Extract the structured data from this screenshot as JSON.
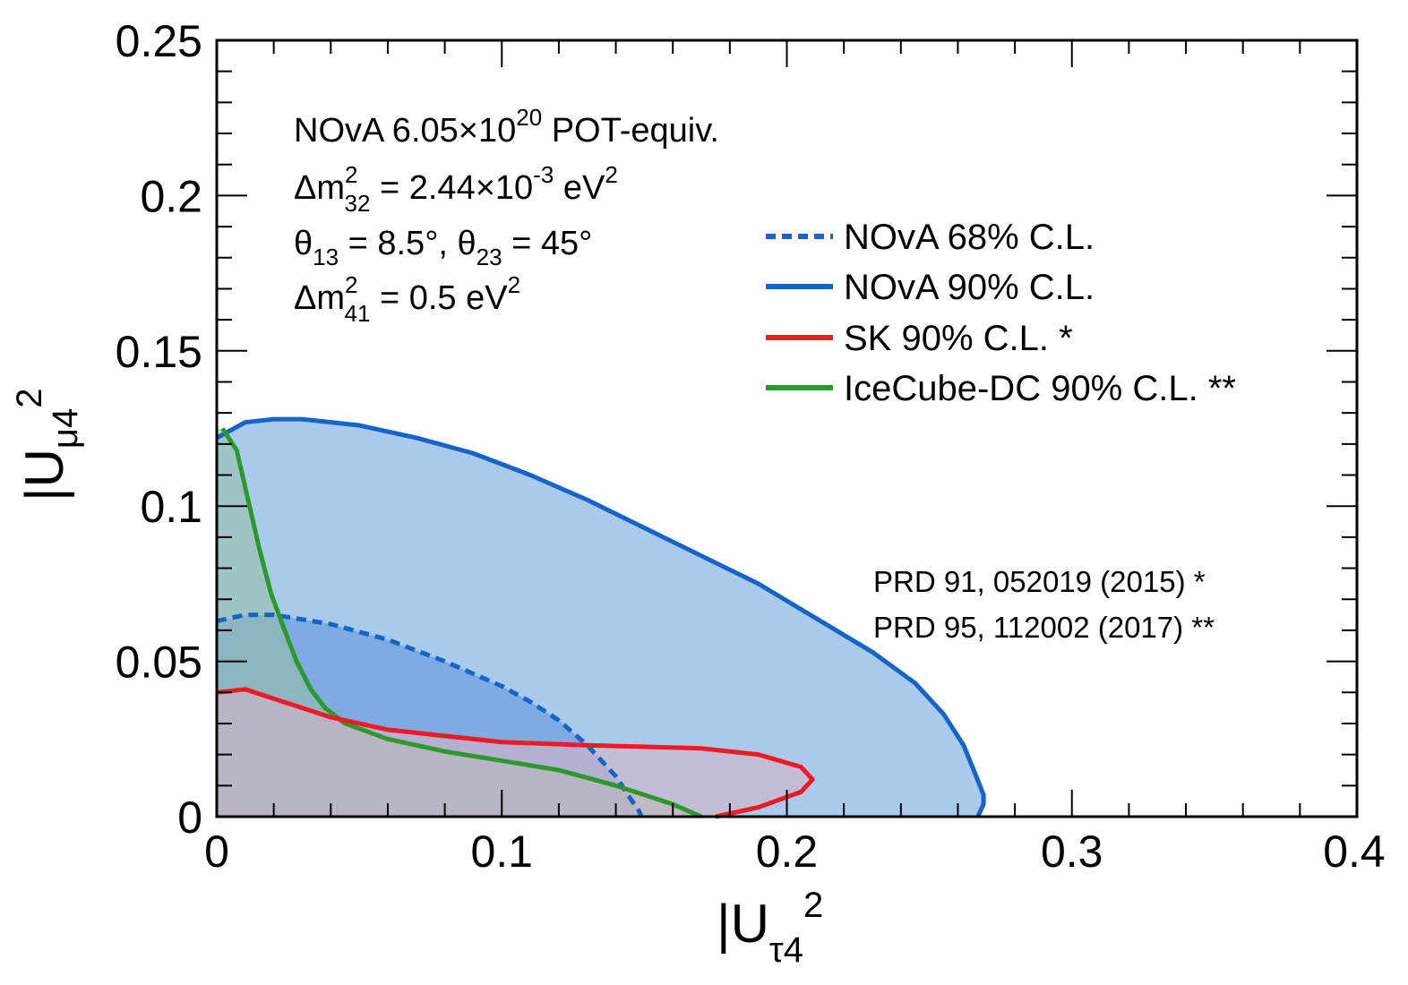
{
  "chart_data": {
    "type": "area",
    "xlabel": {
      "main": "|U",
      "sub": "τ4",
      "sup": "2"
    },
    "ylabel": {
      "main": "|U",
      "sub": "μ4",
      "sup": "2"
    },
    "xlim": [
      0,
      0.4
    ],
    "ylim": [
      0,
      0.25
    ],
    "xticks": [
      "0",
      "0.1",
      "0.2",
      "0.3",
      "0.4"
    ],
    "yticks": [
      "0",
      "0.05",
      "0.1",
      "0.15",
      "0.2",
      "0.25"
    ],
    "grid": false,
    "legend_position": "right",
    "info_lines": [
      {
        "pre": "NOvA 6.05×10",
        "sup": "20",
        "post": " POT-equiv."
      },
      {
        "pre": "Δm",
        "sup": "2",
        "sub": "32",
        "post": " = 2.44×10",
        "sup2": "-3",
        "post2": " eV",
        "sup3": "2"
      },
      {
        "pre": "θ",
        "sub": "13",
        "mid": " = 8.5°, θ",
        "sub2": "23",
        "post": " = 45°"
      },
      {
        "pre": "Δm",
        "sup": "2",
        "sub": "41",
        "post": " = 0.5 eV",
        "sup3": "2"
      }
    ],
    "references": [
      "PRD 91, 052019 (2015) *",
      "PRD 95, 112002 (2017) **"
    ],
    "series": [
      {
        "name": "NOvA 90% C.L.",
        "color": "#1565c8",
        "fill": "#6fa6de",
        "fill_opacity": 0.6,
        "style": "solid",
        "points": [
          [
            0,
            0.122
          ],
          [
            0.01,
            0.127
          ],
          [
            0.02,
            0.128
          ],
          [
            0.03,
            0.128
          ],
          [
            0.05,
            0.126
          ],
          [
            0.07,
            0.122
          ],
          [
            0.09,
            0.117
          ],
          [
            0.11,
            0.11
          ],
          [
            0.13,
            0.102
          ],
          [
            0.15,
            0.093
          ],
          [
            0.17,
            0.084
          ],
          [
            0.19,
            0.075
          ],
          [
            0.21,
            0.064
          ],
          [
            0.23,
            0.053
          ],
          [
            0.245,
            0.043
          ],
          [
            0.255,
            0.033
          ],
          [
            0.262,
            0.023
          ],
          [
            0.266,
            0.014
          ],
          [
            0.269,
            0.007
          ],
          [
            0.269,
            0.004
          ],
          [
            0.267,
            0
          ]
        ]
      },
      {
        "name": "NOvA 68% C.L.",
        "color": "#1565c8",
        "fill": "#4a86d6",
        "fill_opacity": 0.45,
        "style": "dashed",
        "points": [
          [
            0,
            0.063
          ],
          [
            0.01,
            0.065
          ],
          [
            0.02,
            0.065
          ],
          [
            0.04,
            0.062
          ],
          [
            0.06,
            0.057
          ],
          [
            0.08,
            0.05
          ],
          [
            0.1,
            0.042
          ],
          [
            0.11,
            0.037
          ],
          [
            0.12,
            0.031
          ],
          [
            0.13,
            0.023
          ],
          [
            0.14,
            0.013
          ],
          [
            0.145,
            0.006
          ],
          [
            0.148,
            0.002
          ],
          [
            0.149,
            0
          ]
        ]
      },
      {
        "name": "SK 90% C.L. *",
        "color": "#ee1b24",
        "fill": "#d7b4c8",
        "fill_opacity": 0.6,
        "style": "solid",
        "points": [
          [
            0,
            0.04
          ],
          [
            0.01,
            0.041
          ],
          [
            0.02,
            0.038
          ],
          [
            0.04,
            0.032
          ],
          [
            0.06,
            0.028
          ],
          [
            0.08,
            0.026
          ],
          [
            0.1,
            0.024
          ],
          [
            0.13,
            0.023
          ],
          [
            0.17,
            0.022
          ],
          [
            0.19,
            0.02
          ],
          [
            0.205,
            0.016
          ],
          [
            0.209,
            0.012
          ],
          [
            0.205,
            0.008
          ],
          [
            0.19,
            0.003
          ],
          [
            0.175,
            0
          ]
        ]
      },
      {
        "name": "IceCube-DC 90% C.L. **",
        "color": "#2b9a2b",
        "fill": "#97bfa8",
        "fill_opacity": 0.55,
        "style": "solid",
        "points": [
          [
            0.002,
            0.125
          ],
          [
            0.007,
            0.118
          ],
          [
            0.011,
            0.102
          ],
          [
            0.015,
            0.086
          ],
          [
            0.019,
            0.072
          ],
          [
            0.023,
            0.062
          ],
          [
            0.028,
            0.05
          ],
          [
            0.033,
            0.041
          ],
          [
            0.038,
            0.035
          ],
          [
            0.045,
            0.03
          ],
          [
            0.06,
            0.025
          ],
          [
            0.08,
            0.021
          ],
          [
            0.1,
            0.018
          ],
          [
            0.12,
            0.015
          ],
          [
            0.14,
            0.01
          ],
          [
            0.16,
            0.004
          ],
          [
            0.17,
            0
          ]
        ]
      }
    ],
    "legend_order": [
      "NOvA 68% C.L.",
      "NOvA 90% C.L.",
      "SK 90% C.L. *",
      "IceCube-DC 90% C.L. **"
    ]
  }
}
